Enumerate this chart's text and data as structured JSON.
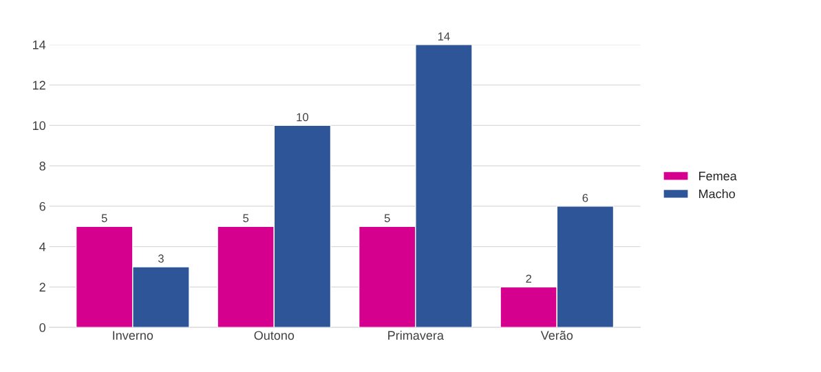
{
  "chart_data": {
    "type": "bar",
    "categories": [
      "Inverno",
      "Outono",
      "Primavera",
      "Verão"
    ],
    "series": [
      {
        "name": "Femea",
        "color": "#d6008f",
        "values": [
          5,
          5,
          5,
          2
        ]
      },
      {
        "name": "Macho",
        "color": "#2e5597",
        "values": [
          3,
          10,
          14,
          6
        ]
      }
    ],
    "ylim": [
      0,
      14
    ],
    "yticks": [
      0,
      2,
      4,
      6,
      8,
      10,
      12,
      14
    ],
    "grid": "y",
    "legend": "right",
    "data_labels": true
  }
}
